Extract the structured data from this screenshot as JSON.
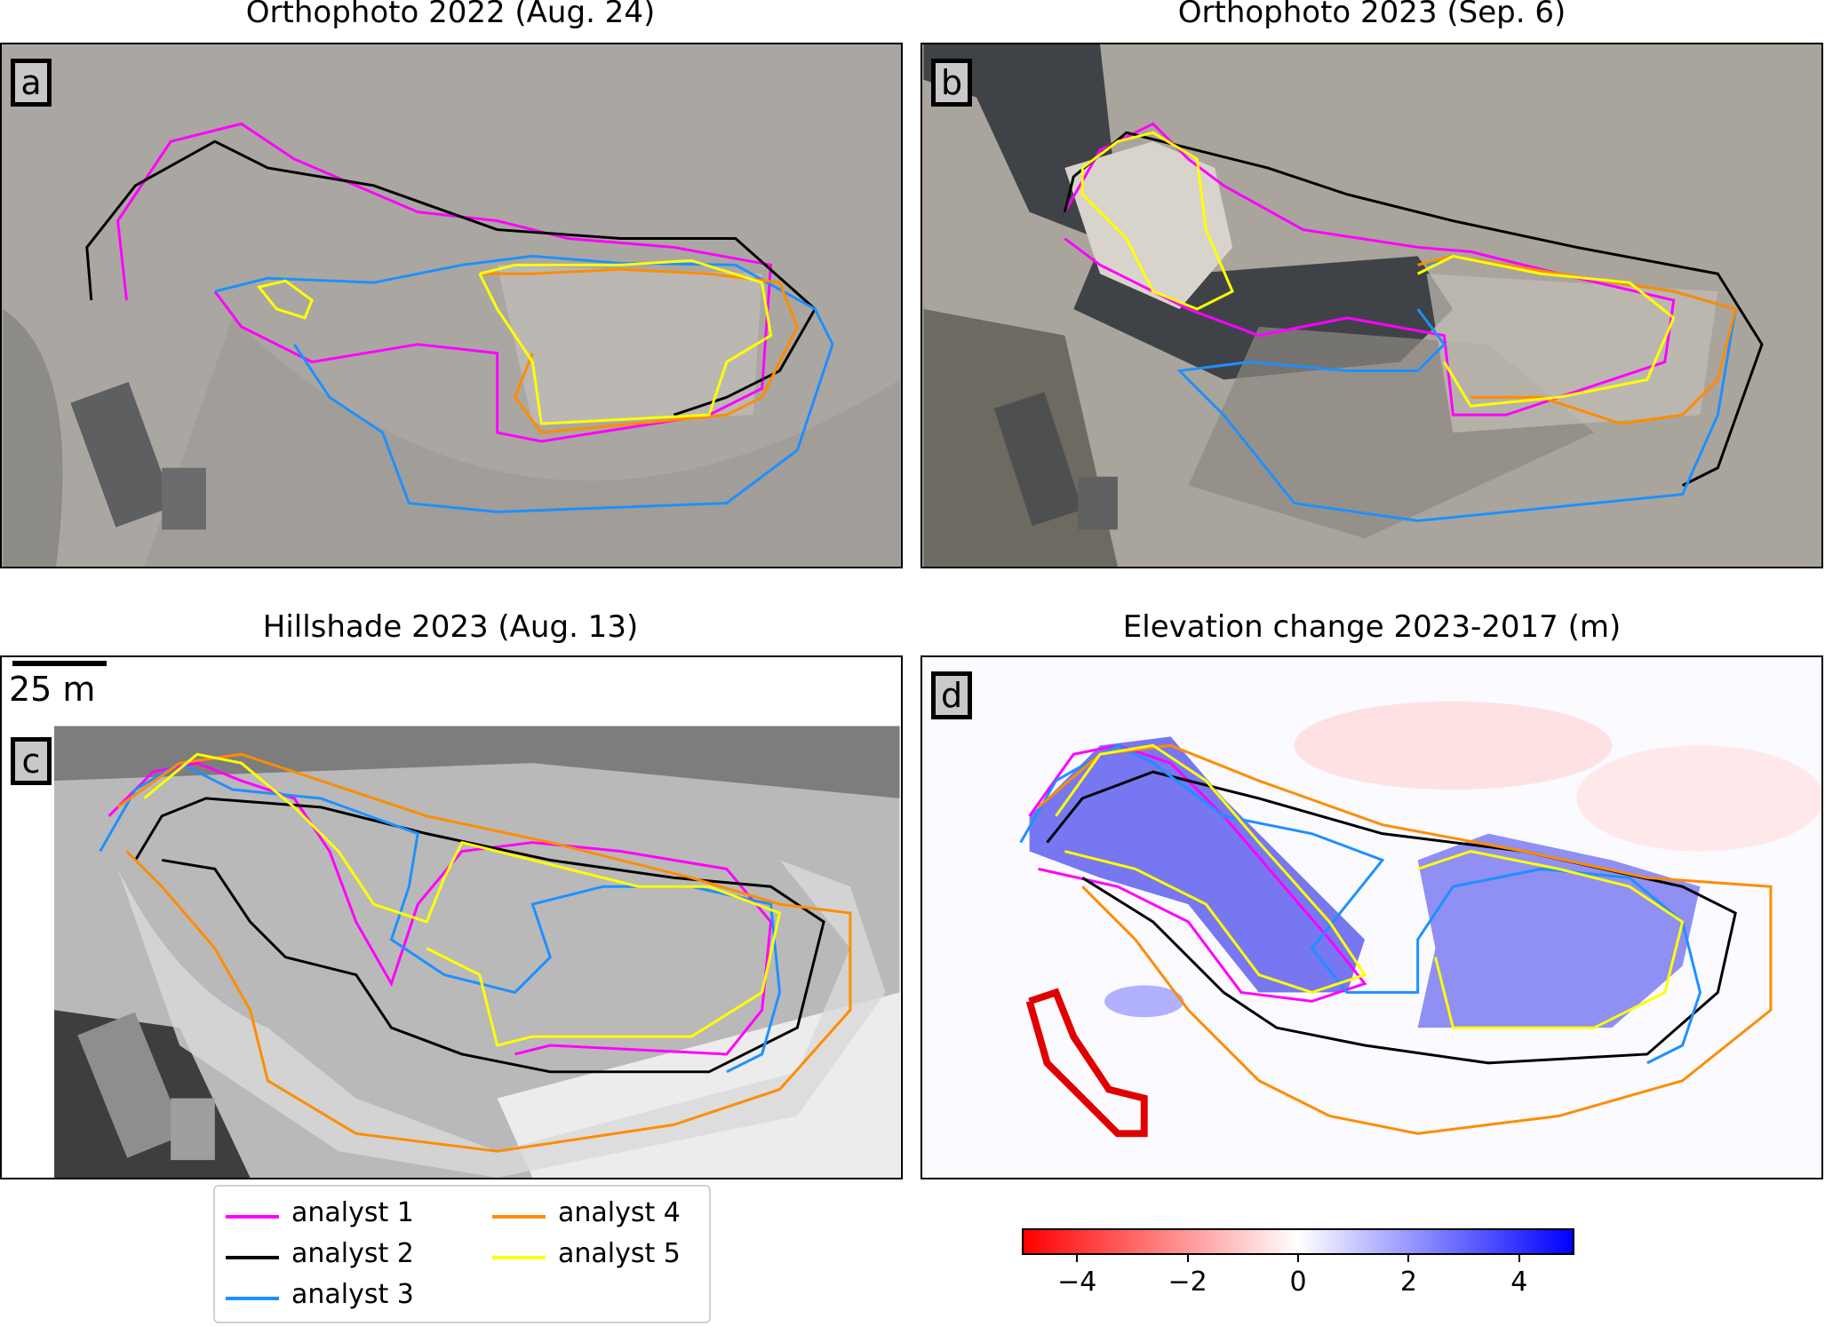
{
  "panels": {
    "a": {
      "title": "Orthophoto 2022 (Aug. 24)",
      "letter": "a"
    },
    "b": {
      "title": "Orthophoto 2023 (Sep. 6)",
      "letter": "b"
    },
    "c": {
      "title": "Hillshade 2023 (Aug. 13)",
      "letter": "c"
    },
    "d": {
      "title": "Elevation change 2023-2017 (m)",
      "letter": "d"
    }
  },
  "scale_bar": {
    "label": "25 m"
  },
  "legend": [
    {
      "label": "analyst 1",
      "color": "#ff00ff"
    },
    {
      "label": "analyst 2",
      "color": "#000000"
    },
    {
      "label": "analyst 3",
      "color": "#1e90ff"
    },
    {
      "label": "analyst 4",
      "color": "#ff8c00"
    },
    {
      "label": "analyst 5",
      "color": "#ffff00"
    }
  ],
  "colorbar": {
    "ticks": [
      "−4",
      "−2",
      "0",
      "2",
      "4"
    ],
    "tick_values": [
      -4,
      -2,
      0,
      2,
      4
    ],
    "range": [
      -5,
      5
    ],
    "colors": [
      "#ff0000",
      "#ffffff",
      "#0000ff"
    ]
  }
}
